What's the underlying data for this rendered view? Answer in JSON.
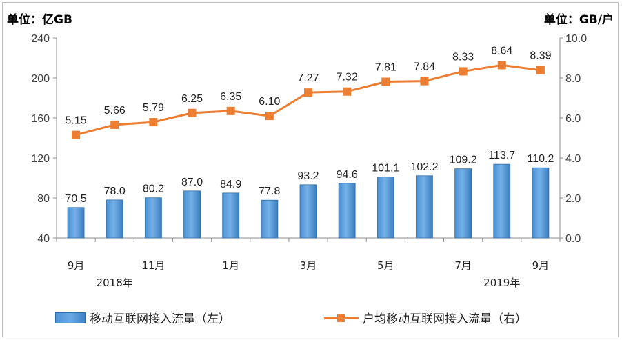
{
  "units": {
    "left": "单位：亿GB",
    "right": "单位：GB/户"
  },
  "chart_data": {
    "type": "bar",
    "categories": [
      "2018-09",
      "2018-10",
      "2018-11",
      "2018-12",
      "2019-01",
      "2019-02",
      "2019-03",
      "2019-04",
      "2019-05",
      "2019-06",
      "2019-07",
      "2019-08",
      "2019-09"
    ],
    "x_tick_labels": [
      "9月",
      "",
      "11月",
      "",
      "1月",
      "",
      "3月",
      "",
      "5月",
      "",
      "7月",
      "",
      "9月"
    ],
    "year_labels": [
      "2018年",
      "2019年"
    ],
    "series": [
      {
        "name": "移动互联网接入流量（左）",
        "type": "bar",
        "axis": "left",
        "color": "#5b9bd5",
        "values": [
          70.5,
          78.0,
          80.2,
          87.0,
          84.9,
          77.8,
          93.2,
          94.6,
          101.1,
          102.2,
          109.2,
          113.7,
          110.2
        ],
        "labels": [
          "70.5",
          "78.0",
          "80.2",
          "87.0",
          "84.9",
          "77.8",
          "93.2",
          "94.6",
          "101.1",
          "102.2",
          "109.2",
          "113.7",
          "110.2"
        ]
      },
      {
        "name": "户均移动互联网接入流量（右）",
        "type": "line",
        "axis": "right",
        "color": "#ed7d31",
        "values": [
          5.15,
          5.66,
          5.79,
          6.25,
          6.35,
          6.1,
          7.27,
          7.32,
          7.81,
          7.84,
          8.33,
          8.64,
          8.39
        ],
        "labels": [
          "5.15",
          "5.66",
          "5.79",
          "6.25",
          "6.35",
          "6.10",
          "7.27",
          "7.32",
          "7.81",
          "7.84",
          "8.33",
          "8.64",
          "8.39"
        ]
      }
    ],
    "y_left": {
      "min": 40,
      "max": 240,
      "ticks": [
        "40",
        "80",
        "120",
        "160",
        "200",
        "240"
      ]
    },
    "y_right": {
      "min": 0,
      "max": 10,
      "ticks": [
        "0.0",
        "2.0",
        "4.0",
        "6.0",
        "8.0",
        "10.0"
      ]
    },
    "grid": false,
    "legend_position": "bottom"
  }
}
